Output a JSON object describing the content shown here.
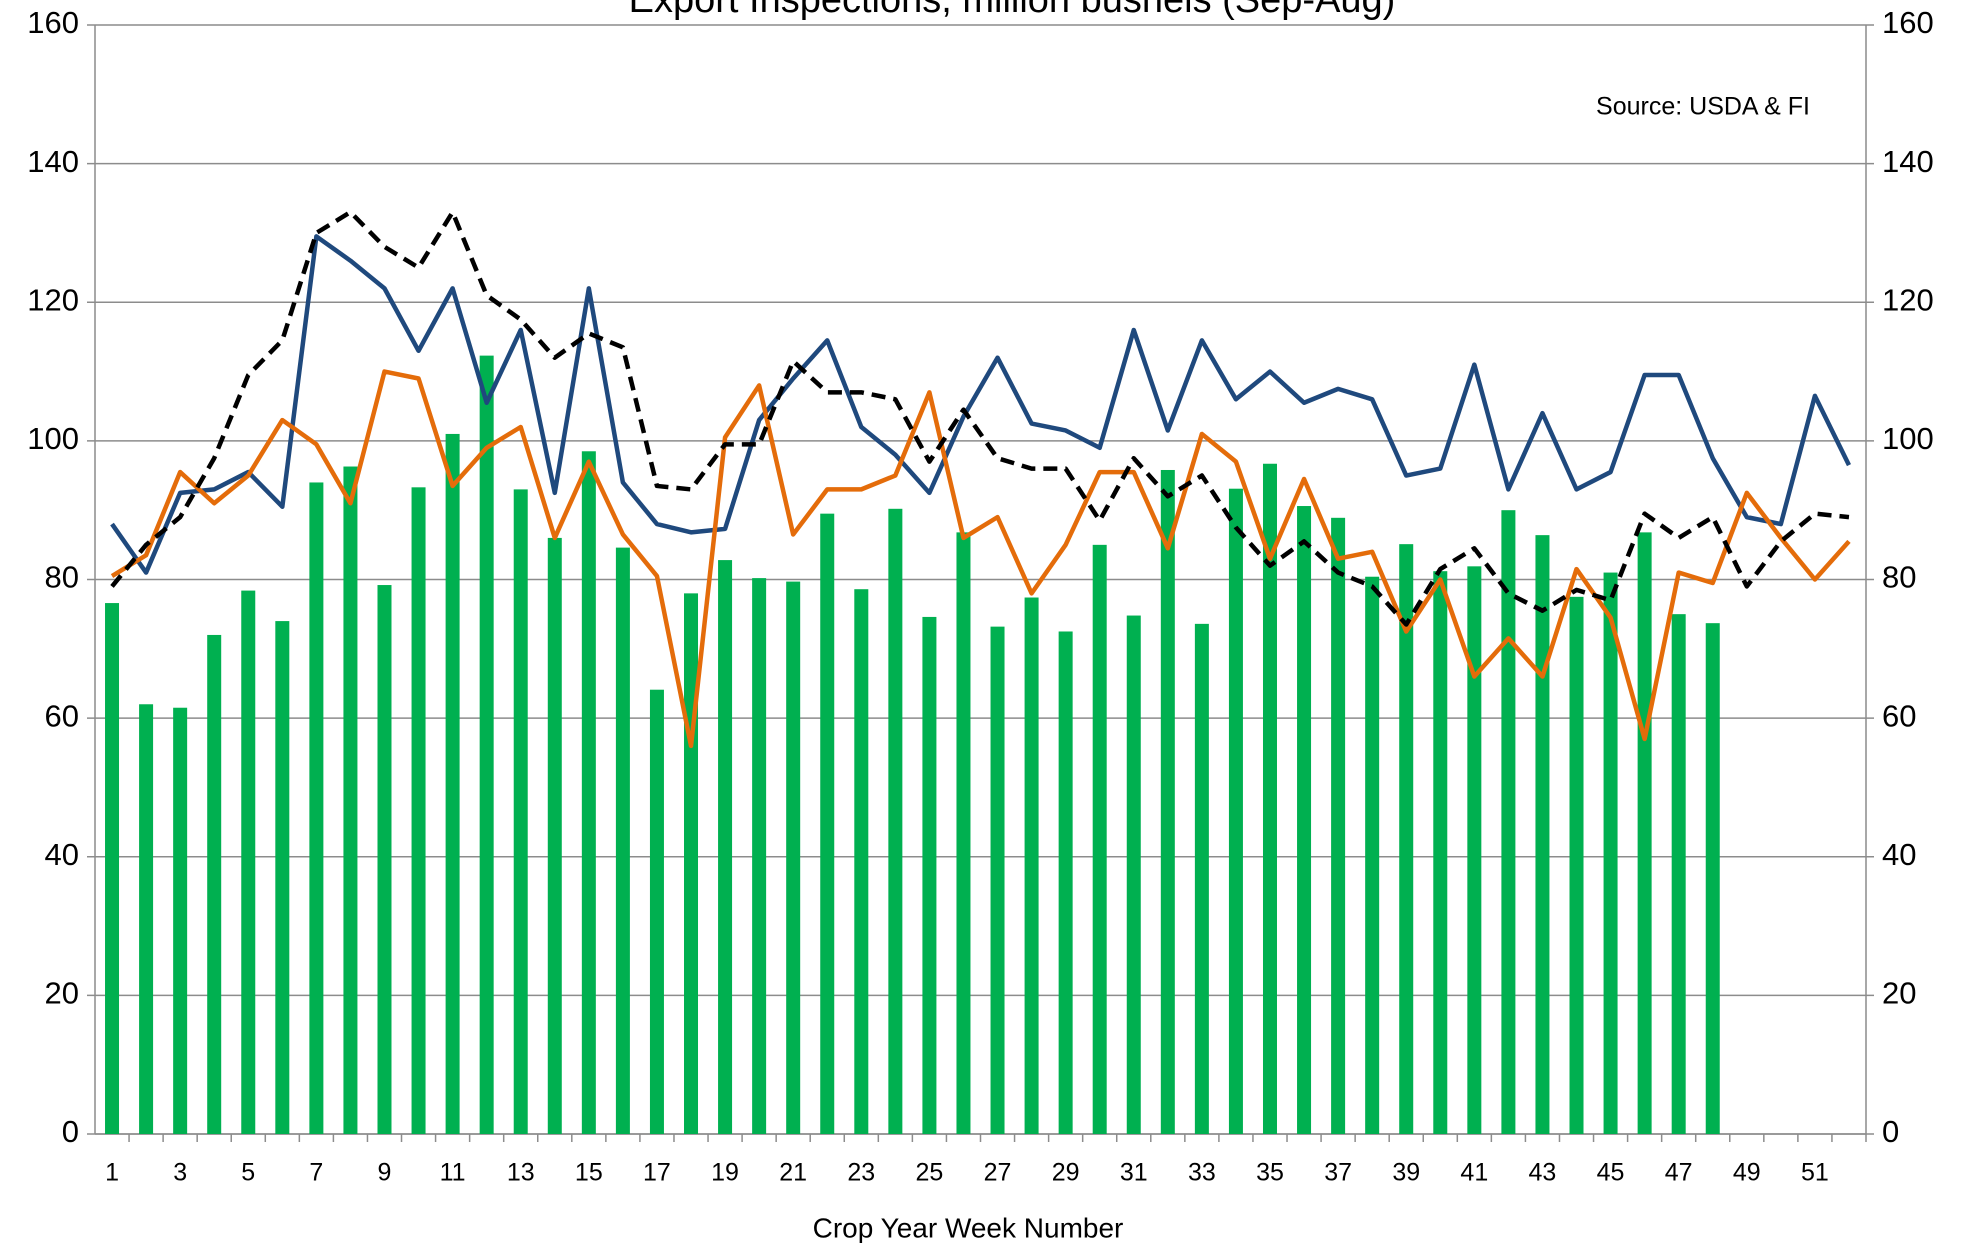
{
  "chart_data": {
    "type": "combo",
    "title": "Export Inspections, million bushels (Sep-Aug)",
    "annotation": "Source: USDA & FI",
    "x_label": "Crop Year Week Number",
    "categories": [
      "1",
      null,
      "3",
      null,
      "5",
      null,
      "7",
      null,
      "9",
      null,
      "11",
      null,
      "13",
      null,
      "15",
      null,
      "17",
      null,
      "19",
      null,
      "21",
      null,
      "23",
      null,
      "25",
      null,
      "27",
      null,
      "29",
      null,
      "31",
      null,
      "33",
      null,
      "35",
      null,
      "37",
      null,
      "39",
      null,
      "41",
      null,
      "43",
      null,
      "45",
      null,
      "47",
      null,
      "49",
      null,
      "51",
      null
    ],
    "ylim": [
      0,
      160
    ],
    "yticks": [
      0,
      20,
      40,
      60,
      80,
      100,
      120,
      140,
      160
    ],
    "y2lim": [
      0,
      160
    ],
    "y2ticks": [
      0,
      20,
      40,
      60,
      80,
      100,
      120,
      140,
      160
    ],
    "grid": true,
    "series": [
      {
        "type": "bar",
        "color": "#00b050",
        "values": [
          76.6,
          62,
          61.5,
          72,
          78.4,
          74,
          94,
          96.3,
          79.2,
          93.3,
          101,
          112.3,
          93,
          86,
          98.5,
          84.6,
          64.1,
          78,
          82.8,
          80.2,
          79.7,
          89.5,
          78.6,
          90.2,
          74.6,
          86.8,
          73.2,
          77.4,
          72.5,
          85,
          74.8,
          95.8,
          73.6,
          93.1,
          96.7,
          90.6,
          88.9,
          80.4,
          85.1,
          81.2,
          81.9,
          90,
          86.4,
          77.5,
          81,
          86.8,
          75,
          73.7,
          null,
          null,
          null,
          null
        ]
      },
      {
        "type": "line",
        "color": "#1f497d",
        "values": [
          88,
          81,
          92.5,
          93,
          95.5,
          90.5,
          129.5,
          126,
          122,
          113,
          122,
          105.5,
          116,
          92.5,
          122,
          94,
          88,
          86.8,
          87.3,
          103,
          109,
          114.5,
          102,
          98,
          92.5,
          103.5,
          112,
          102.5,
          101.5,
          99,
          116,
          101.5,
          114.5,
          106,
          110,
          105.5,
          107.5,
          106,
          95,
          96,
          111,
          93,
          104,
          93,
          95.5,
          109.5,
          109.5,
          97.5,
          89,
          88,
          106.5,
          96.5
        ]
      },
      {
        "type": "line",
        "color": "#e46c0a",
        "values": [
          80.5,
          83.5,
          95.5,
          91,
          95,
          103,
          99.5,
          91,
          110,
          109,
          93.5,
          99,
          102,
          86,
          97,
          86.5,
          80.5,
          56,
          100.5,
          108,
          86.5,
          93,
          93,
          95,
          107,
          86,
          89,
          78,
          85,
          95.5,
          95.5,
          84.5,
          101,
          97,
          83,
          94.5,
          83,
          84,
          72.5,
          80,
          66,
          71.5,
          66,
          81.5,
          74.5,
          57,
          81,
          79.5,
          92.5,
          86,
          80,
          85.5
        ]
      },
      {
        "type": "line",
        "color": "#000000",
        "dashed": true,
        "values": [
          79,
          85,
          89,
          97.5,
          109.5,
          114.5,
          130,
          133,
          128,
          125,
          133,
          121,
          117.5,
          112,
          115.5,
          113.5,
          93.5,
          93,
          99.5,
          99.5,
          111.5,
          107,
          107,
          106,
          97,
          104.5,
          97.5,
          96,
          96,
          88.5,
          97.5,
          92,
          95,
          87.5,
          82,
          85.5,
          81,
          79,
          73.5,
          81.5,
          84.5,
          78,
          75.5,
          78.5,
          77,
          89.5,
          86,
          89,
          79,
          85.5,
          89.5,
          89
        ]
      }
    ]
  }
}
